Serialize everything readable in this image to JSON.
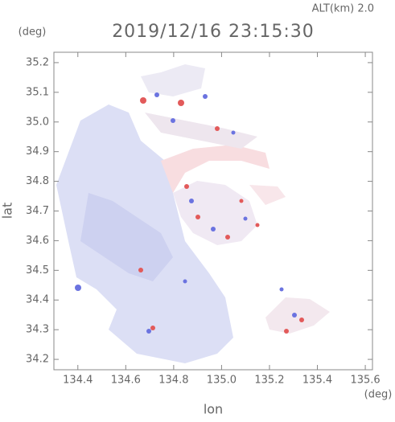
{
  "chart_data": {
    "type": "map",
    "title": "2019/12/16 23:15:30",
    "subtitle": "ALT(km) 2.0",
    "x_label": "lon",
    "y_label": "lat",
    "x_unit": "(deg)",
    "y_unit": "(deg)",
    "xlim": [
      134.3,
      135.63
    ],
    "ylim": [
      34.165,
      35.235
    ],
    "xticks": [
      134.4,
      134.6,
      134.8,
      {
        "value": 135,
        "label": "135.0"
      },
      135.2,
      135.4,
      135.6
    ],
    "yticks": [
      34.2,
      34.3,
      34.4,
      34.5,
      34.6,
      34.7,
      34.8,
      34.9,
      {
        "value": 35,
        "label": "35.0"
      },
      35.1,
      35.2
    ]
  }
}
